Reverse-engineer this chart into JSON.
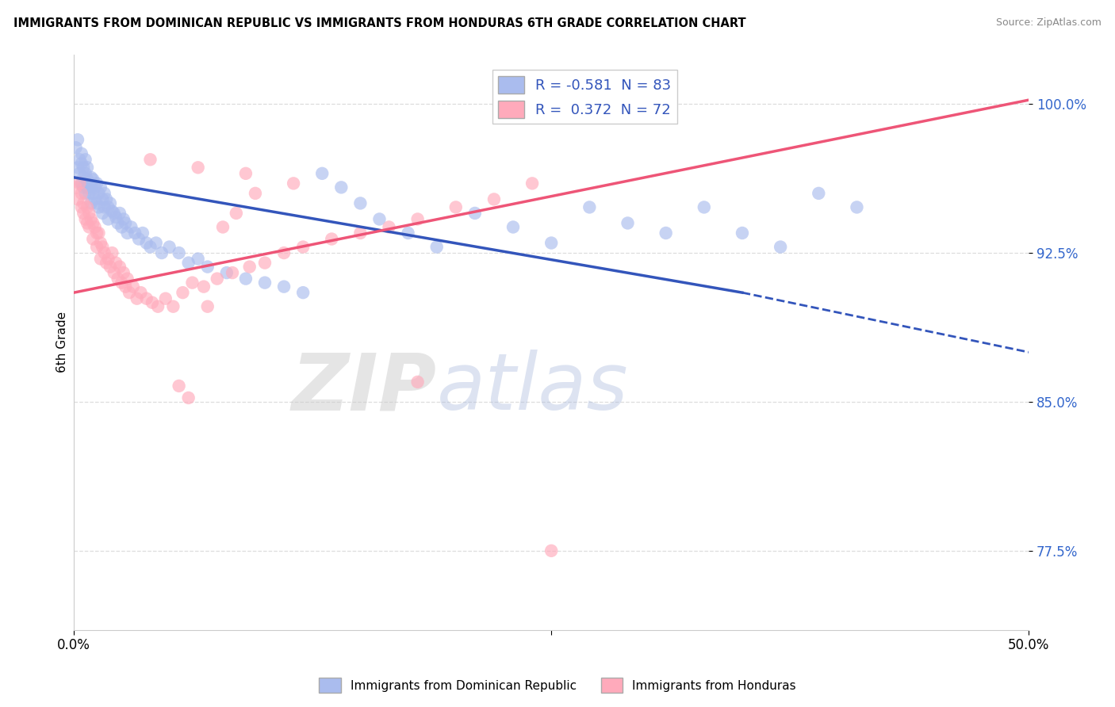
{
  "title": "IMMIGRANTS FROM DOMINICAN REPUBLIC VS IMMIGRANTS FROM HONDURAS 6TH GRADE CORRELATION CHART",
  "source": "Source: ZipAtlas.com",
  "ylabel": "6th Grade",
  "y_ticks": [
    0.775,
    0.85,
    0.925,
    1.0
  ],
  "y_tick_labels": [
    "77.5%",
    "85.0%",
    "92.5%",
    "100.0%"
  ],
  "x_min": 0.0,
  "x_max": 0.5,
  "y_min": 0.735,
  "y_max": 1.025,
  "blue_R": -0.581,
  "blue_N": 83,
  "pink_R": 0.372,
  "pink_N": 72,
  "blue_color": "#AABCEE",
  "blue_line_color": "#3355BB",
  "pink_color": "#FFAABB",
  "pink_line_color": "#EE5577",
  "legend_label_blue": "Immigrants from Dominican Republic",
  "legend_label_pink": "Immigrants from Honduras",
  "watermark_zip": "ZIP",
  "watermark_atlas": "atlas",
  "blue_scatter_x": [
    0.001,
    0.002,
    0.002,
    0.003,
    0.003,
    0.004,
    0.004,
    0.004,
    0.005,
    0.005,
    0.005,
    0.006,
    0.006,
    0.006,
    0.007,
    0.007,
    0.007,
    0.008,
    0.008,
    0.009,
    0.009,
    0.009,
    0.01,
    0.01,
    0.011,
    0.011,
    0.012,
    0.012,
    0.013,
    0.013,
    0.014,
    0.015,
    0.015,
    0.016,
    0.016,
    0.017,
    0.018,
    0.018,
    0.019,
    0.02,
    0.021,
    0.022,
    0.023,
    0.024,
    0.025,
    0.026,
    0.027,
    0.028,
    0.03,
    0.032,
    0.034,
    0.036,
    0.038,
    0.04,
    0.043,
    0.046,
    0.05,
    0.055,
    0.06,
    0.065,
    0.07,
    0.08,
    0.09,
    0.1,
    0.11,
    0.12,
    0.13,
    0.14,
    0.15,
    0.16,
    0.175,
    0.19,
    0.21,
    0.23,
    0.25,
    0.27,
    0.29,
    0.31,
    0.33,
    0.35,
    0.37,
    0.39,
    0.41
  ],
  "blue_scatter_y": [
    0.978,
    0.982,
    0.968,
    0.972,
    0.965,
    0.97,
    0.96,
    0.975,
    0.963,
    0.968,
    0.958,
    0.972,
    0.965,
    0.955,
    0.968,
    0.962,
    0.958,
    0.96,
    0.955,
    0.963,
    0.958,
    0.95,
    0.962,
    0.955,
    0.958,
    0.952,
    0.96,
    0.95,
    0.955,
    0.948,
    0.958,
    0.952,
    0.945,
    0.955,
    0.948,
    0.952,
    0.948,
    0.942,
    0.95,
    0.946,
    0.945,
    0.943,
    0.94,
    0.945,
    0.938,
    0.942,
    0.94,
    0.935,
    0.938,
    0.935,
    0.932,
    0.935,
    0.93,
    0.928,
    0.93,
    0.925,
    0.928,
    0.925,
    0.92,
    0.922,
    0.918,
    0.915,
    0.912,
    0.91,
    0.908,
    0.905,
    0.965,
    0.958,
    0.95,
    0.942,
    0.935,
    0.928,
    0.945,
    0.938,
    0.93,
    0.948,
    0.94,
    0.935,
    0.948,
    0.935,
    0.928,
    0.955,
    0.948
  ],
  "pink_scatter_x": [
    0.001,
    0.002,
    0.003,
    0.004,
    0.004,
    0.005,
    0.005,
    0.006,
    0.007,
    0.007,
    0.008,
    0.008,
    0.009,
    0.01,
    0.01,
    0.011,
    0.012,
    0.012,
    0.013,
    0.014,
    0.014,
    0.015,
    0.016,
    0.017,
    0.018,
    0.019,
    0.02,
    0.021,
    0.022,
    0.023,
    0.024,
    0.025,
    0.026,
    0.027,
    0.028,
    0.029,
    0.031,
    0.033,
    0.035,
    0.038,
    0.041,
    0.044,
    0.048,
    0.052,
    0.057,
    0.062,
    0.068,
    0.075,
    0.083,
    0.092,
    0.1,
    0.11,
    0.12,
    0.135,
    0.15,
    0.165,
    0.18,
    0.2,
    0.22,
    0.24,
    0.065,
    0.09,
    0.115,
    0.055,
    0.078,
    0.095,
    0.04,
    0.085,
    0.06,
    0.07,
    0.25,
    0.18
  ],
  "pink_scatter_y": [
    0.958,
    0.952,
    0.96,
    0.948,
    0.955,
    0.945,
    0.95,
    0.942,
    0.948,
    0.94,
    0.945,
    0.938,
    0.942,
    0.94,
    0.932,
    0.938,
    0.935,
    0.928,
    0.935,
    0.93,
    0.922,
    0.928,
    0.925,
    0.92,
    0.922,
    0.918,
    0.925,
    0.915,
    0.92,
    0.912,
    0.918,
    0.91,
    0.915,
    0.908,
    0.912,
    0.905,
    0.908,
    0.902,
    0.905,
    0.902,
    0.9,
    0.898,
    0.902,
    0.898,
    0.905,
    0.91,
    0.908,
    0.912,
    0.915,
    0.918,
    0.92,
    0.925,
    0.928,
    0.932,
    0.935,
    0.938,
    0.942,
    0.948,
    0.952,
    0.96,
    0.968,
    0.965,
    0.96,
    0.858,
    0.938,
    0.955,
    0.972,
    0.945,
    0.852,
    0.898,
    0.775,
    0.86
  ]
}
